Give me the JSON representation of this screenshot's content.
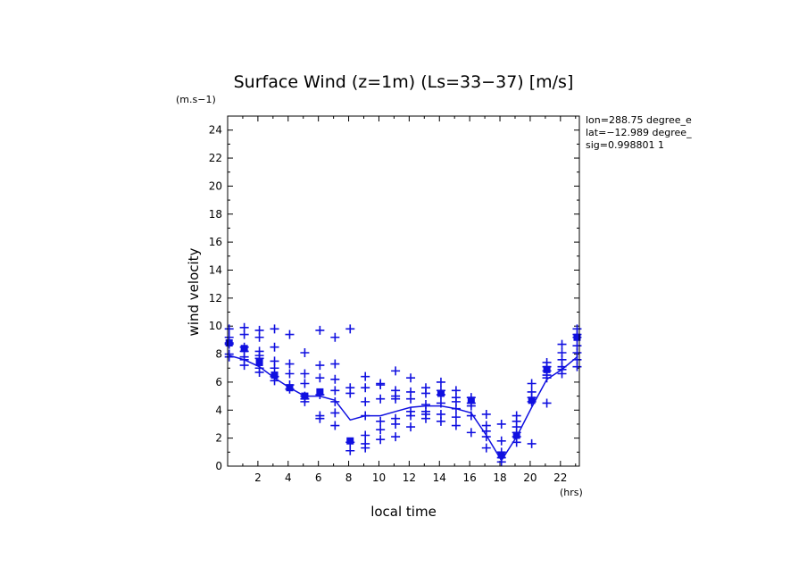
{
  "chart_data": {
    "type": "scatter",
    "title": "Surface Wind (z=1m) (Ls=33−37) [m/s]",
    "ylabel": "wind velocity",
    "yunit": "(m.s−1)",
    "xlabel": "local time",
    "xunit": "(hrs)",
    "xlim": [
      0,
      23.25
    ],
    "ylim": [
      0,
      25
    ],
    "xticks": [
      2,
      4,
      6,
      8,
      10,
      12,
      14,
      16,
      18,
      20,
      22
    ],
    "yticks": [
      0,
      2,
      4,
      6,
      8,
      10,
      12,
      14,
      16,
      18,
      20,
      22,
      24
    ],
    "info": [
      "lon=288.75 degree_e",
      "lat=−12.989 degree_",
      "sig=0.998801 1"
    ],
    "color": "#1010e0",
    "series": [
      {
        "kind": "points",
        "x": [
          0.1,
          0.1,
          0.1,
          0.1,
          0.1,
          0.1,
          1.1,
          1.1,
          1.1,
          1.1,
          1.1,
          1.1,
          1.1,
          2.1,
          2.1,
          2.1,
          2.1,
          2.1,
          2.1,
          2.1,
          3.1,
          3.1,
          3.1,
          3.1,
          3.1,
          3.1,
          4.1,
          4.1,
          4.1,
          4.1,
          4.1,
          5.1,
          5.1,
          5.1,
          5.1,
          5.1,
          5.1,
          6.1,
          6.1,
          6.1,
          6.1,
          6.1,
          6.1,
          7.1,
          7.1,
          7.1,
          7.1,
          7.1,
          7.1,
          7.1,
          8.1,
          8.1,
          8.1,
          8.1,
          8.1,
          9.1,
          9.1,
          9.1,
          9.1,
          9.1,
          9.1,
          9.1,
          10.1,
          10.1,
          10.1,
          10.1,
          10.1,
          10.1,
          11.1,
          11.1,
          11.1,
          11.1,
          11.1,
          11.1,
          11.1,
          12.1,
          12.1,
          12.1,
          12.1,
          12.1,
          12.1,
          13.1,
          13.1,
          13.1,
          13.1,
          13.1,
          13.1,
          14.1,
          14.1,
          14.1,
          14.1,
          14.1,
          14.1,
          15.1,
          15.1,
          15.1,
          15.1,
          15.1,
          15.1,
          16.1,
          16.1,
          16.1,
          16.1,
          16.1,
          17.1,
          17.1,
          17.1,
          17.1,
          17.1,
          18.1,
          18.1,
          18.1,
          18.1,
          18.1,
          19.1,
          19.1,
          19.1,
          19.1,
          19.1,
          19.1,
          20.1,
          20.1,
          20.1,
          20.1,
          20.1,
          21.1,
          21.1,
          21.1,
          21.1,
          21.1,
          21.1,
          22.1,
          22.1,
          22.1,
          22.1,
          22.1,
          22.1,
          23.1,
          23.1,
          23.1,
          23.1,
          23.1,
          23.1,
          23.1
        ],
        "y": [
          9.8,
          9.2,
          8.8,
          8.7,
          8.0,
          7.8,
          9.9,
          9.4,
          8.5,
          8.2,
          7.8,
          7.6,
          7.2,
          9.7,
          9.2,
          8.2,
          7.9,
          7.7,
          7.0,
          6.7,
          9.8,
          8.5,
          7.5,
          7.0,
          6.4,
          6.1,
          9.4,
          7.3,
          6.6,
          5.8,
          5.5,
          8.1,
          6.6,
          5.9,
          5.0,
          4.8,
          4.6,
          9.7,
          7.2,
          6.3,
          5.1,
          3.6,
          3.4,
          9.2,
          7.3,
          6.2,
          5.4,
          4.6,
          3.8,
          2.9,
          9.8,
          5.6,
          5.2,
          1.7,
          1.1,
          6.4,
          5.6,
          4.6,
          3.6,
          2.2,
          1.6,
          1.3,
          5.9,
          5.8,
          4.8,
          3.2,
          2.6,
          1.9,
          6.8,
          5.4,
          5.0,
          4.8,
          3.4,
          3.0,
          2.1,
          6.3,
          5.3,
          4.8,
          3.9,
          3.6,
          2.8,
          5.6,
          5.2,
          4.4,
          3.9,
          3.4,
          3.7,
          6.0,
          5.4,
          5.1,
          4.5,
          3.7,
          3.2,
          5.4,
          4.9,
          4.6,
          4.1,
          3.5,
          2.9,
          4.9,
          4.5,
          4.3,
          3.6,
          2.4,
          3.7,
          2.9,
          2.5,
          2.1,
          1.3,
          3.0,
          1.8,
          1.0,
          0.6,
          0.3,
          3.6,
          3.2,
          2.8,
          2.4,
          2.1,
          1.7,
          5.9,
          5.3,
          4.9,
          4.6,
          1.6,
          7.4,
          7.1,
          6.8,
          6.5,
          6.3,
          4.5,
          8.7,
          8.1,
          7.6,
          7.1,
          6.9,
          6.6,
          9.8,
          9.4,
          9.2,
          8.6,
          8.1,
          7.6,
          7.1
        ]
      },
      {
        "kind": "markers",
        "x": [
          0.1,
          1.1,
          2.1,
          3.1,
          4.1,
          5.1,
          6.1,
          8.1,
          14.1,
          16.1,
          18.1,
          19.1,
          20.1,
          21.1,
          23.1
        ],
        "y": [
          8.8,
          8.4,
          7.4,
          6.5,
          5.6,
          5.0,
          5.3,
          1.8,
          5.2,
          4.7,
          0.8,
          2.2,
          4.7,
          6.9,
          9.2
        ]
      },
      {
        "kind": "line",
        "x": [
          0.1,
          1.1,
          2.1,
          3.1,
          4.1,
          5.1,
          6.1,
          7.1,
          8.1,
          9.1,
          10.1,
          11.1,
          12.1,
          13.1,
          14.1,
          15.1,
          16.1,
          17.1,
          18.1,
          19.1,
          20.1,
          21.1,
          22.1,
          23.1
        ],
        "y": [
          7.9,
          7.6,
          7.1,
          6.3,
          5.6,
          5.0,
          5.0,
          4.7,
          3.3,
          3.6,
          3.6,
          3.9,
          4.2,
          4.3,
          4.3,
          4.1,
          3.8,
          2.2,
          0.4,
          2.1,
          4.2,
          6.2,
          6.9,
          7.8
        ]
      }
    ]
  }
}
